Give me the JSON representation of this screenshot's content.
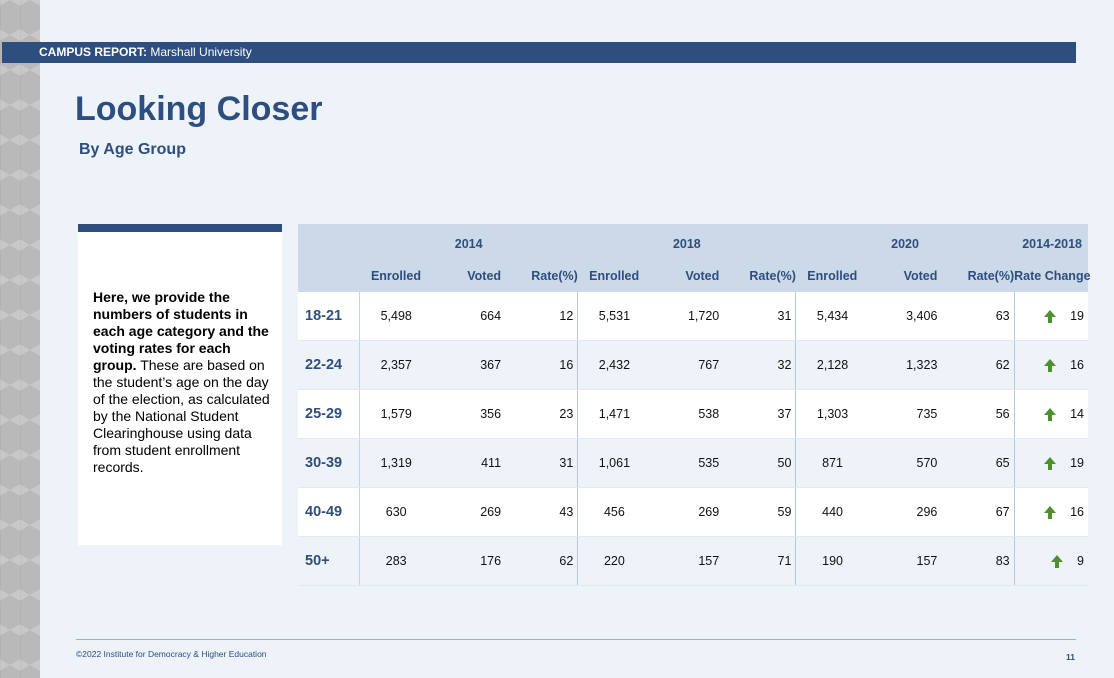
{
  "header": {
    "report_label": "CAMPUS REPORT:",
    "institution": "Marshall University"
  },
  "title": "Looking Closer",
  "subtitle": "By Age Group",
  "intro": {
    "bold": "Here, we provide the numbers of students in each age category and the voting rates for each group.",
    "normal": "These are based on the student’s age on the day of the election, as calculated by the National Student Clearinghouse using data from student enrollment records."
  },
  "table": {
    "years": [
      "2014",
      "2018",
      "2020",
      "2014-2018"
    ],
    "columns": [
      "Enrolled",
      "Voted",
      "Rate(%)",
      "Enrolled",
      "Voted",
      "Rate(%)",
      "Enrolled",
      "Voted",
      "Rate(%)",
      "Rate Change"
    ],
    "rows": [
      {
        "age": "18-21",
        "cells": [
          "5,498",
          "664",
          "12",
          "5,531",
          "1,720",
          "31",
          "5,434",
          "3,406",
          "63"
        ],
        "change": "19"
      },
      {
        "age": "22-24",
        "cells": [
          "2,357",
          "367",
          "16",
          "2,432",
          "767",
          "32",
          "2,128",
          "1,323",
          "62"
        ],
        "change": "16"
      },
      {
        "age": "25-29",
        "cells": [
          "1,579",
          "356",
          "23",
          "1,471",
          "538",
          "37",
          "1,303",
          "735",
          "56"
        ],
        "change": "14"
      },
      {
        "age": "30-39",
        "cells": [
          "1,319",
          "411",
          "31",
          "1,061",
          "535",
          "50",
          "871",
          "570",
          "65"
        ],
        "change": "19"
      },
      {
        "age": "40-49",
        "cells": [
          "630",
          "269",
          "43",
          "456",
          "269",
          "59",
          "440",
          "296",
          "67"
        ],
        "change": "16"
      },
      {
        "age": "50+",
        "cells": [
          "283",
          "176",
          "62",
          "220",
          "157",
          "71",
          "190",
          "157",
          "83"
        ],
        "change": "9"
      }
    ],
    "change_icon": "up-arrow-icon",
    "change_color": "#4f8f2f"
  },
  "footer": {
    "copyright": "©2022 Institute for Democracy & Higher Education",
    "page_number": "11"
  },
  "colors": {
    "brand": "#2d4e7e",
    "header_fill": "#ccd9e8"
  }
}
